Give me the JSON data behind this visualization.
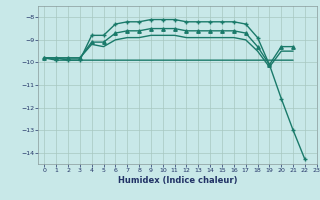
{
  "title": "",
  "xlabel": "Humidex (Indice chaleur)",
  "ylabel": "",
  "background_color": "#c8e8e8",
  "grid_color": "#a8c8c0",
  "line_color": "#1a7a6a",
  "xlim": [
    -0.5,
    23
  ],
  "ylim": [
    -14.5,
    -7.5
  ],
  "x_ticks": [
    0,
    1,
    2,
    3,
    4,
    5,
    6,
    7,
    8,
    9,
    10,
    11,
    12,
    13,
    14,
    15,
    16,
    17,
    18,
    19,
    20,
    21,
    22,
    23
  ],
  "y_ticks": [
    -14,
    -13,
    -12,
    -11,
    -10,
    -9,
    -8
  ],
  "series": [
    {
      "x": [
        0,
        1,
        2,
        3,
        4,
        5,
        6,
        7,
        8,
        9,
        10,
        11,
        12,
        13,
        14,
        15,
        16,
        17,
        18,
        19,
        20,
        21
      ],
      "y": [
        -9.8,
        -9.8,
        -9.8,
        -9.8,
        -9.1,
        -9.1,
        -8.7,
        -8.6,
        -8.6,
        -8.5,
        -8.5,
        -8.5,
        -8.6,
        -8.6,
        -8.6,
        -8.6,
        -8.6,
        -8.7,
        -9.3,
        -10.1,
        -9.3,
        -9.3
      ],
      "marker": "^",
      "markersize": 2.5,
      "linewidth": 1.0
    },
    {
      "x": [
        0,
        1,
        2,
        3,
        4,
        5,
        6,
        7,
        8,
        9,
        10,
        11,
        12,
        13,
        14,
        15,
        16,
        17,
        18,
        19,
        20,
        21
      ],
      "y": [
        -9.8,
        -9.8,
        -9.8,
        -9.8,
        -9.2,
        -9.3,
        -9.0,
        -8.9,
        -8.9,
        -8.8,
        -8.8,
        -8.8,
        -8.9,
        -8.9,
        -8.9,
        -8.9,
        -8.9,
        -9.0,
        -9.5,
        -10.2,
        -9.5,
        -9.5
      ],
      "marker": null,
      "markersize": 0,
      "linewidth": 1.0
    },
    {
      "x": [
        0,
        1,
        2,
        3,
        4,
        5,
        6,
        7,
        8,
        9,
        10,
        11,
        12,
        13,
        14,
        15,
        16,
        17,
        18,
        19,
        20,
        21
      ],
      "y": [
        -9.8,
        -9.8,
        -9.9,
        -9.9,
        -9.9,
        -9.9,
        -9.9,
        -9.9,
        -9.9,
        -9.9,
        -9.9,
        -9.9,
        -9.9,
        -9.9,
        -9.9,
        -9.9,
        -9.9,
        -9.9,
        -9.9,
        -9.9,
        -9.9,
        -9.9
      ],
      "marker": null,
      "markersize": 0,
      "linewidth": 1.0
    },
    {
      "x": [
        0,
        1,
        2,
        3,
        4,
        5,
        6,
        7,
        8,
        9,
        10,
        11,
        12,
        13,
        14,
        15,
        16,
        17,
        18,
        19,
        20,
        21,
        22
      ],
      "y": [
        -9.8,
        -9.9,
        -9.9,
        -9.9,
        -8.8,
        -8.8,
        -8.3,
        -8.2,
        -8.2,
        -8.1,
        -8.1,
        -8.1,
        -8.2,
        -8.2,
        -8.2,
        -8.2,
        -8.2,
        -8.3,
        -8.9,
        -10.1,
        -11.6,
        -13.0,
        -14.3
      ],
      "marker": "+",
      "markersize": 3.5,
      "linewidth": 1.0
    }
  ]
}
